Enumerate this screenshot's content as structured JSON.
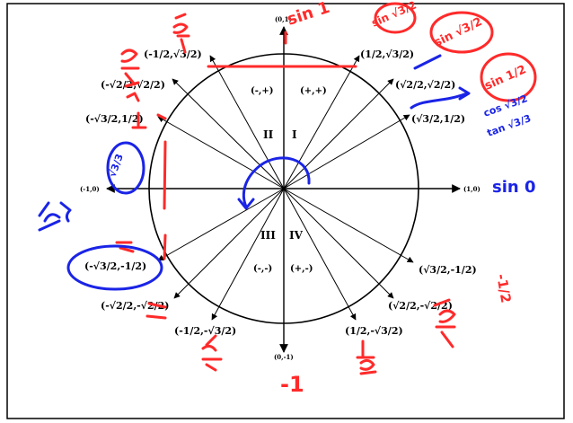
{
  "axes": {
    "top": "(0,1)",
    "bottom": "(0,-1)",
    "left": "(-1,0)",
    "right": "(1,0)"
  },
  "points": {
    "q1_60": "(1/2,√3/2)",
    "q1_45": "(√2/2,√2/2)",
    "q1_30": "(√3/2,1/2)",
    "q2_120": "(-1/2,√3/2)",
    "q2_135": "(-√2/2,√2/2)",
    "q2_150": "(-√3/2,1/2)",
    "q3_210": "(-√3/2,-1/2)",
    "q3_225": "(-√2/2,-√2/2)",
    "q3_240": "(-1/2,-√3/2)",
    "q4_300": "(1/2,-√3/2)",
    "q4_315": "(√2/2,-√2/2)",
    "q4_330": "(√3/2,-1/2)"
  },
  "quadrants": {
    "I": "I",
    "II": "II",
    "III": "III",
    "IV": "IV"
  },
  "signs": {
    "q1": "(+,+)",
    "q2": "(-,+)",
    "q3": "(-,-)",
    "q4": "(+,-)"
  },
  "annotations": {
    "sin1": "sin 1",
    "sin0": "sin 0",
    "sin_top_a": "sin √3/2",
    "sin_top_b": "sin √3/2",
    "sin_right": "sin 1/2",
    "cos_right": "cos √3/2",
    "tan_right": "tan √3/3",
    "frac_left": "√3/3",
    "neg_half_right": "-1/2",
    "neg_one_bottom": "-1"
  },
  "colors": {
    "red_ink": "#ff2a2a",
    "blue_ink": "#1a24e6"
  }
}
